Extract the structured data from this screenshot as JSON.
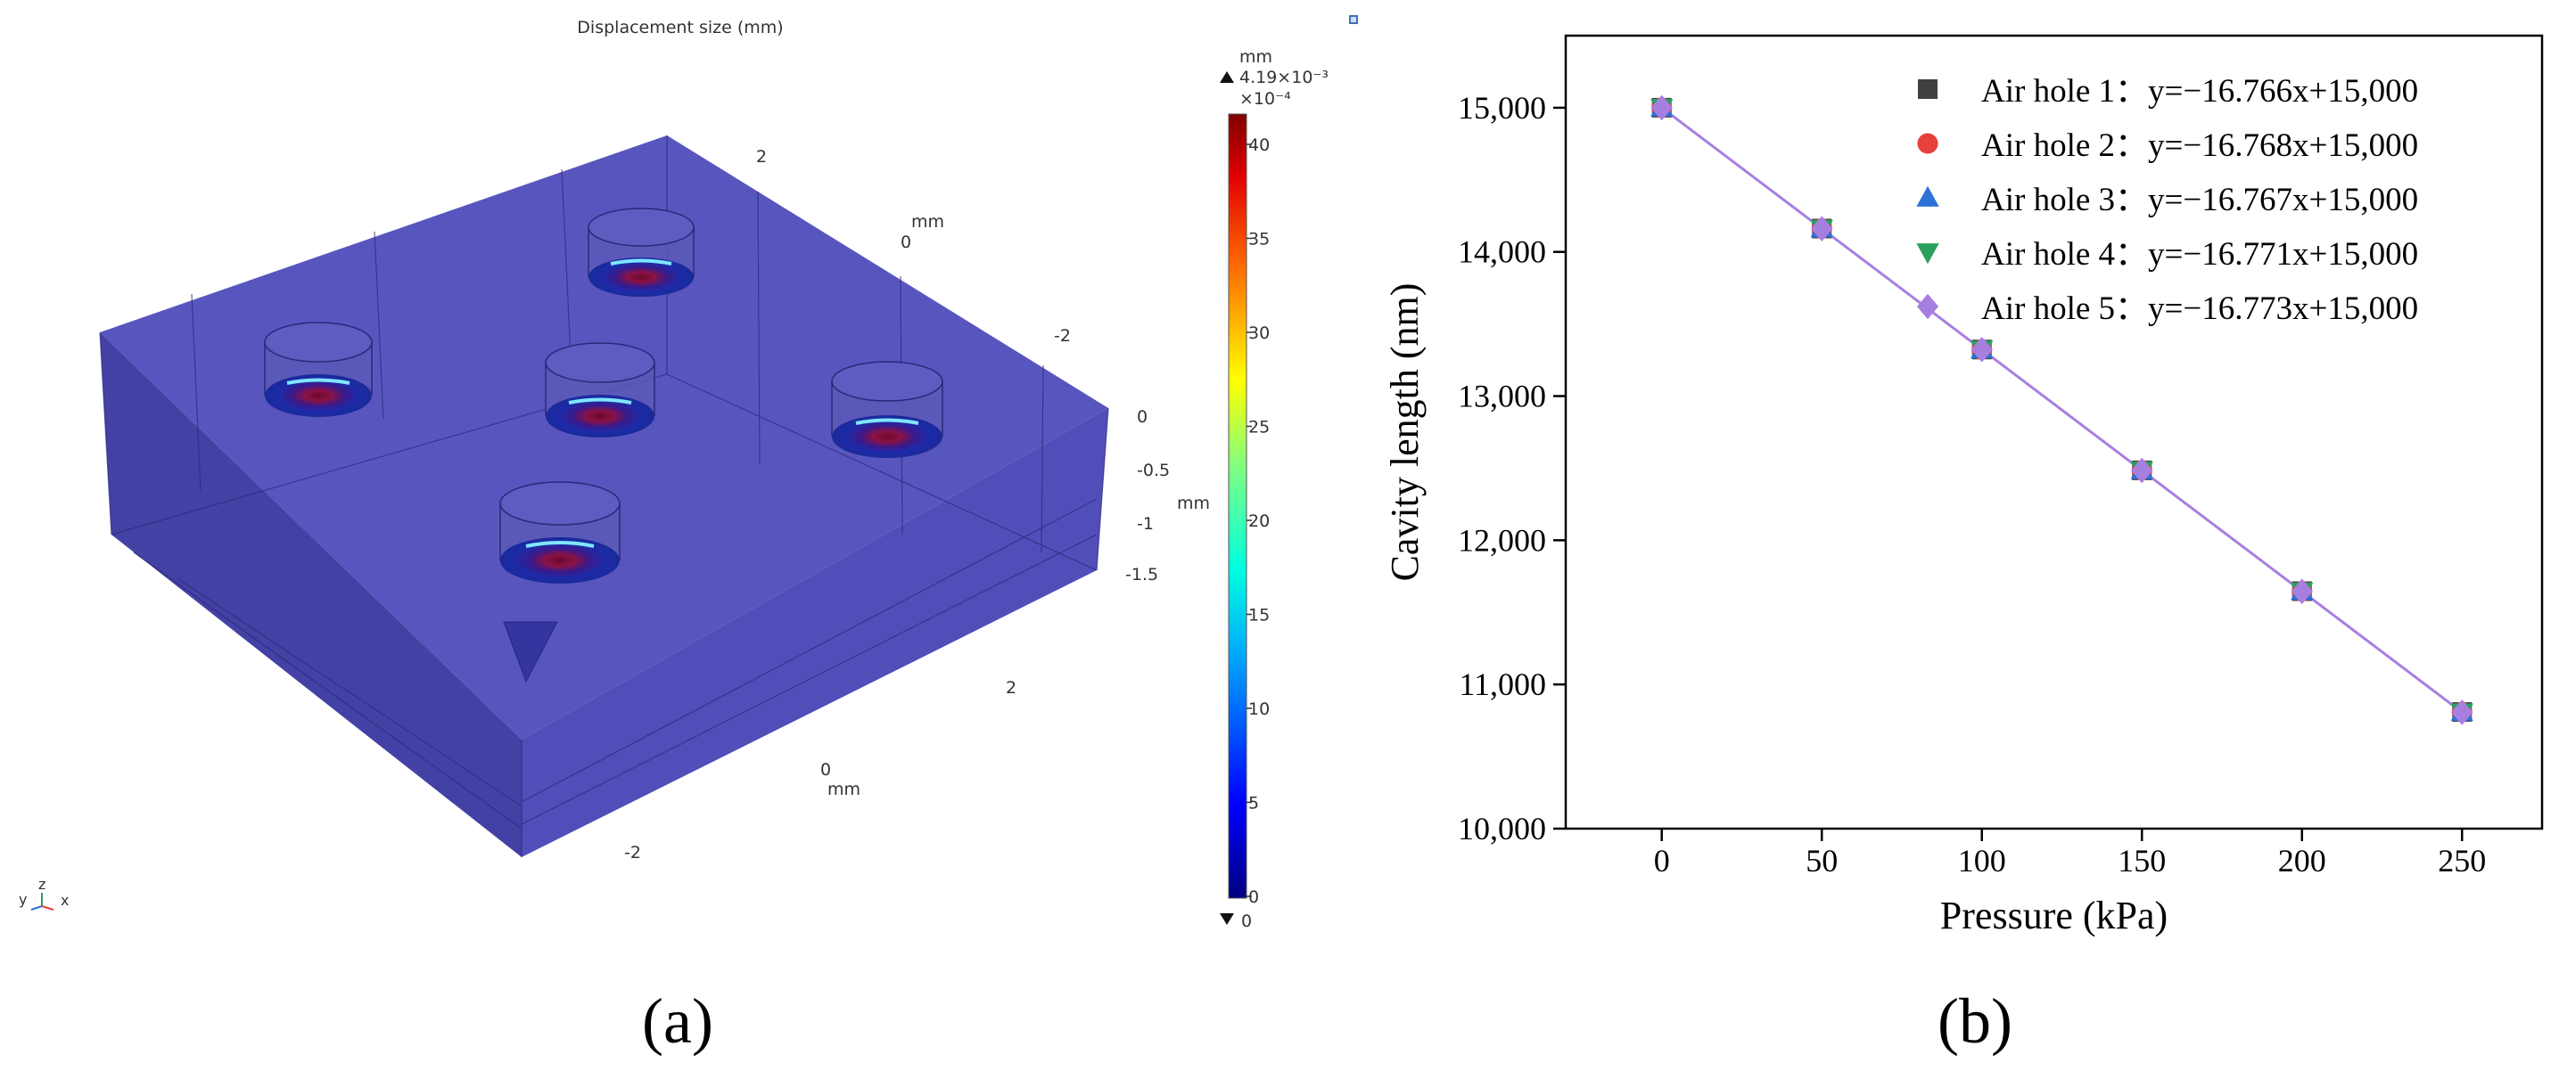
{
  "panel_a": {
    "label": "(a)",
    "title": "Displacement size (mm)",
    "colorbar": {
      "unit": "mm",
      "max_label": "4.19×10⁻³",
      "scale_label": "×10⁻⁴",
      "ticks": [
        "40",
        "35",
        "30",
        "25",
        "20",
        "15",
        "10",
        "5",
        "0"
      ],
      "min_label": "0"
    },
    "axis_labels": {
      "y_ticks": [
        "2",
        "0",
        "-2"
      ],
      "y_unit": "mm",
      "z_ticks": [
        "0",
        "-0.5",
        "-1",
        "-1.5"
      ],
      "z_unit": "mm",
      "x_ticks": [
        "2",
        "0",
        "-2"
      ],
      "x_unit": "mm"
    },
    "triad": {
      "z": "z",
      "y": "y",
      "x": "x"
    }
  },
  "panel_b": {
    "label": "(b)"
  },
  "chart_data": {
    "type": "scatter",
    "title": "",
    "xlabel": "Pressure (kPa)",
    "ylabel": "Cavity length (nm)",
    "xlim": [
      -30,
      275
    ],
    "ylim": [
      10000,
      15500
    ],
    "xticks": [
      0,
      50,
      100,
      150,
      200,
      250
    ],
    "yticks": [
      10000,
      11000,
      12000,
      13000,
      14000,
      15000
    ],
    "xtick_labels": [
      "0",
      "50",
      "100",
      "150",
      "200",
      "250"
    ],
    "ytick_labels": [
      "10,000",
      "11,000",
      "12,000",
      "13,000",
      "14,000",
      "15,000"
    ],
    "grid": false,
    "legend_position": "top-right",
    "fit_line_color": "#a77fe0",
    "x": [
      0,
      50,
      100,
      150,
      200,
      250
    ],
    "series": [
      {
        "name": "Air hole 1：y=−16.766x+15,000",
        "marker": "square",
        "color": "#404040",
        "values": [
          15000,
          14162,
          13323,
          12485,
          11647,
          10809
        ]
      },
      {
        "name": "Air hole 2：y=−16.768x+15,000",
        "marker": "circle",
        "color": "#e8403a",
        "values": [
          15000,
          14162,
          13323,
          12485,
          11646,
          10808
        ]
      },
      {
        "name": "Air hole 3：y=−16.767x+15,000",
        "marker": "triangle-up",
        "color": "#2e72d8",
        "values": [
          15000,
          14162,
          13323,
          12485,
          11647,
          10808
        ]
      },
      {
        "name": "Air hole 4：y=−16.771x+15,000",
        "marker": "triangle-down",
        "color": "#2ba05e",
        "values": [
          15000,
          14161,
          13323,
          12484,
          11646,
          10807
        ]
      },
      {
        "name": "Air hole 5：y=−16.773x+15,000",
        "marker": "diamond",
        "color": "#a77fe0",
        "values": [
          15000,
          14161,
          13323,
          12484,
          11645,
          10807
        ]
      }
    ]
  }
}
